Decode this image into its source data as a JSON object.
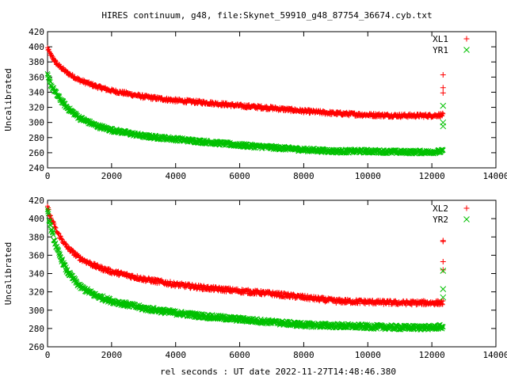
{
  "title": "HIRES continuum, g48, file:Skynet_59910_g48_87754_36674.cyb.txt",
  "colors": {
    "series1": "#ff0000",
    "series2": "#00c000",
    "axis": "#000000"
  },
  "chart_data": [
    {
      "type": "scatter",
      "ylabel": "Uncalibrated",
      "xlabel": "",
      "xlim": [
        0,
        14000
      ],
      "ylim": [
        240,
        420
      ],
      "xticks": [
        0,
        2000,
        4000,
        6000,
        8000,
        10000,
        12000,
        14000
      ],
      "yticks": [
        240,
        260,
        280,
        300,
        320,
        340,
        360,
        380,
        400,
        420
      ],
      "legend_position": "top-right",
      "series": [
        {
          "name": "XL1",
          "marker": "plus",
          "x": [
            0,
            100,
            300,
            600,
            1000,
            1500,
            2000,
            3000,
            4000,
            5000,
            6000,
            7000,
            8000,
            9000,
            10000,
            11000,
            12000,
            12350
          ],
          "values": [
            398,
            389,
            377,
            366,
            356,
            348,
            342,
            334,
            329,
            326,
            322,
            319,
            315,
            312,
            310,
            309,
            309,
            310
          ],
          "outliers": [
            [
              12350,
              363
            ],
            [
              12350,
              346
            ],
            [
              12350,
              339
            ]
          ]
        },
        {
          "name": "YR1",
          "marker": "cross",
          "x": [
            0,
            100,
            300,
            600,
            1000,
            1500,
            2000,
            3000,
            4000,
            5000,
            6000,
            7000,
            8000,
            9000,
            10000,
            11000,
            12000,
            12350
          ],
          "values": [
            362,
            350,
            336,
            320,
            306,
            296,
            290,
            282,
            278,
            274,
            270,
            267,
            264,
            262,
            262,
            261,
            261,
            262
          ],
          "outliers": [
            [
              12350,
              322
            ],
            [
              12350,
              300
            ],
            [
              12350,
              295
            ]
          ]
        }
      ]
    },
    {
      "type": "scatter",
      "ylabel": "Uncalibrated",
      "xlabel": "rel seconds : UT date 2022-11-27T14:48:46.380",
      "xlim": [
        0,
        14000
      ],
      "ylim": [
        260,
        420
      ],
      "xticks": [
        0,
        2000,
        4000,
        6000,
        8000,
        10000,
        12000,
        14000
      ],
      "yticks": [
        260,
        280,
        300,
        320,
        340,
        360,
        380,
        400,
        420
      ],
      "legend_position": "top-right",
      "series": [
        {
          "name": "XL2",
          "marker": "plus",
          "x": [
            0,
            100,
            300,
            600,
            1000,
            1500,
            2000,
            3000,
            4000,
            5000,
            6000,
            7000,
            8000,
            9000,
            10000,
            11000,
            12000,
            12350
          ],
          "values": [
            413,
            401,
            385,
            369,
            357,
            348,
            342,
            334,
            328,
            324,
            321,
            318,
            314,
            310,
            309,
            308,
            308,
            308
          ],
          "outliers": [
            [
              12350,
              376
            ],
            [
              12350,
              375
            ],
            [
              12350,
              353
            ],
            [
              12350,
              344
            ]
          ]
        },
        {
          "name": "YR2",
          "marker": "cross",
          "x": [
            0,
            100,
            300,
            600,
            1000,
            1500,
            2000,
            3000,
            4000,
            5000,
            6000,
            7000,
            8000,
            9000,
            10000,
            11000,
            12000,
            12350
          ],
          "values": [
            408,
            390,
            366,
            343,
            326,
            316,
            310,
            302,
            297,
            293,
            290,
            287,
            284,
            283,
            282,
            281,
            281,
            282
          ],
          "outliers": [
            [
              12350,
              343
            ],
            [
              12350,
              323
            ],
            [
              12350,
              314
            ]
          ]
        }
      ]
    }
  ]
}
